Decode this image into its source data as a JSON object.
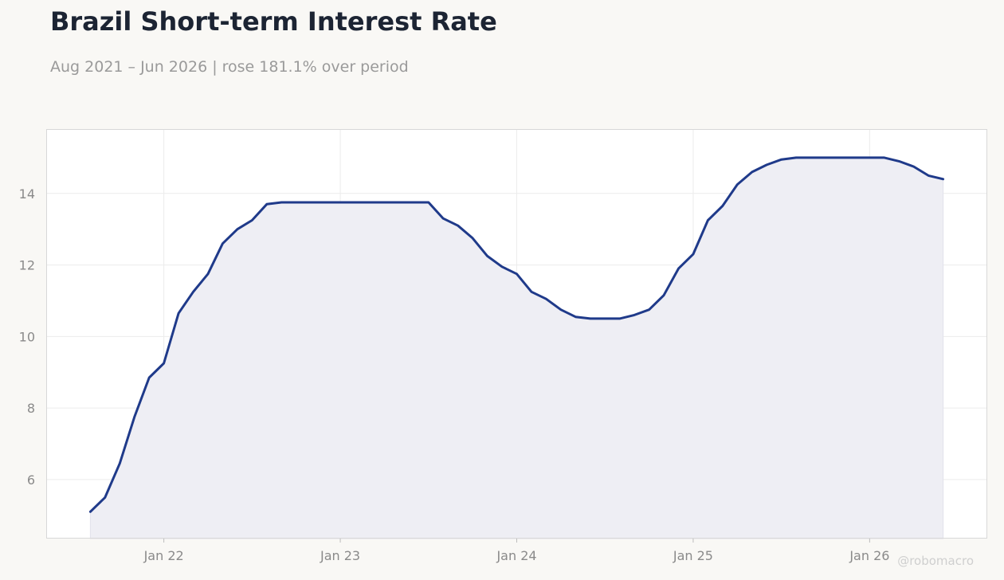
{
  "header": {
    "title": "Brazil Short-term Interest Rate",
    "subtitle": "Aug 2021 – Jun 2026 | rose 181.1% over period"
  },
  "watermark": "@robomacro",
  "colors": {
    "line": "#1f3a8a",
    "fill": "#eeeef4",
    "grid": "#ececec",
    "frame": "#d8d8d8",
    "text_muted": "#8a8a8a"
  },
  "chart_data": {
    "type": "area",
    "title": "Brazil Short-term Interest Rate",
    "subtitle": "Aug 2021 – Jun 2026 | rose 181.1% over period",
    "xlabel": "",
    "ylabel": "",
    "grid": true,
    "legend": "none",
    "x_ticks": [
      {
        "date": "2022-01",
        "label": "Jan 22"
      },
      {
        "date": "2023-01",
        "label": "Jan 23"
      },
      {
        "date": "2024-01",
        "label": "Jan 24"
      },
      {
        "date": "2025-01",
        "label": "Jan 25"
      },
      {
        "date": "2026-01",
        "label": "Jan 26"
      }
    ],
    "y_ticks": [
      6,
      8,
      10,
      12,
      14
    ],
    "xlim": [
      "2021-05",
      "2026-09"
    ],
    "ylim": [
      4.35,
      15.8
    ],
    "series": [
      {
        "x": [
          "2021-08",
          "2021-09",
          "2021-10",
          "2021-11",
          "2021-12",
          "2022-01",
          "2022-02",
          "2022-03",
          "2022-04",
          "2022-05",
          "2022-06",
          "2022-07",
          "2022-08",
          "2022-09",
          "2022-10",
          "2022-11",
          "2022-12",
          "2023-01",
          "2023-02",
          "2023-03",
          "2023-04",
          "2023-05",
          "2023-06",
          "2023-07",
          "2023-08",
          "2023-09",
          "2023-10",
          "2023-11",
          "2023-12",
          "2024-01",
          "2024-02",
          "2024-03",
          "2024-04",
          "2024-05",
          "2024-06",
          "2024-07",
          "2024-08",
          "2024-09",
          "2024-10",
          "2024-11",
          "2024-12",
          "2025-01",
          "2025-02",
          "2025-03",
          "2025-04",
          "2025-05",
          "2025-06",
          "2025-07",
          "2025-08",
          "2025-09",
          "2025-10",
          "2025-11",
          "2025-12",
          "2026-01",
          "2026-02",
          "2026-03",
          "2026-04",
          "2026-05",
          "2026-06"
        ],
        "values": [
          5.1,
          5.5,
          6.45,
          7.75,
          8.85,
          9.25,
          10.65,
          11.25,
          11.75,
          12.6,
          13.0,
          13.25,
          13.7,
          13.75,
          13.75,
          13.75,
          13.75,
          13.75,
          13.75,
          13.75,
          13.75,
          13.75,
          13.75,
          13.75,
          13.3,
          13.1,
          12.75,
          12.25,
          11.95,
          11.75,
          11.25,
          11.05,
          10.75,
          10.55,
          10.5,
          10.5,
          10.5,
          10.6,
          10.75,
          11.15,
          11.9,
          12.3,
          13.25,
          13.65,
          14.25,
          14.6,
          14.8,
          14.95,
          15.0,
          15.0,
          15.0,
          15.0,
          15.0,
          15.0,
          15.0,
          14.9,
          14.75,
          14.5,
          14.4
        ]
      }
    ]
  }
}
